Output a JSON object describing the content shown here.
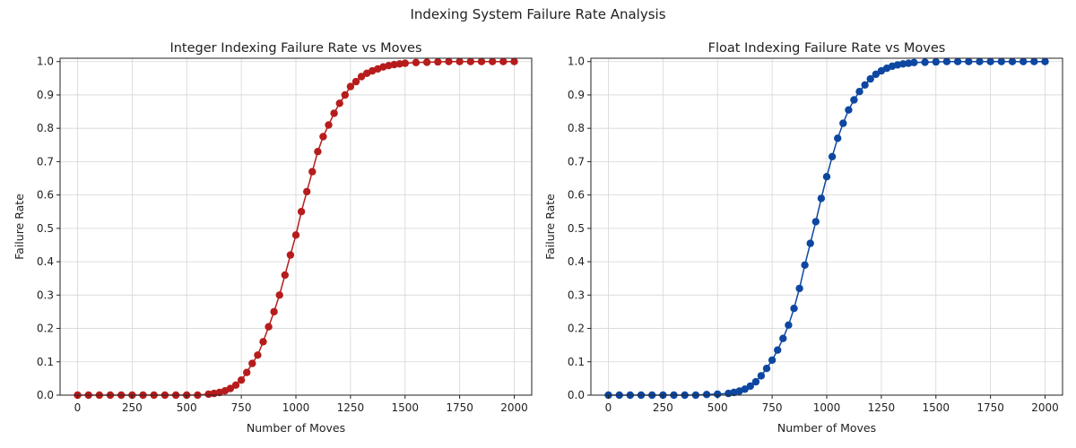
{
  "figure": {
    "suptitle": "Indexing System Failure Rate Analysis"
  },
  "chart_data": [
    {
      "type": "line",
      "title": "Integer Indexing Failure Rate vs Moves",
      "xlabel": "Number of Moves",
      "ylabel": "Failure Rate",
      "xlim": [
        -80,
        2080
      ],
      "ylim": [
        0,
        1.01
      ],
      "xticks": [
        0,
        250,
        500,
        750,
        1000,
        1250,
        1500,
        1750,
        2000
      ],
      "yticks": [
        0.0,
        0.1,
        0.2,
        0.3,
        0.4,
        0.5,
        0.6,
        0.7,
        0.8,
        0.9,
        1.0
      ],
      "grid": true,
      "color": "#b71c1c",
      "markers": "circle",
      "series": [
        {
          "x": [
            0,
            50,
            100,
            150,
            200,
            250,
            300,
            350,
            400,
            450,
            500,
            550,
            600,
            625,
            650,
            675,
            700,
            725,
            750,
            775,
            800,
            825,
            850,
            875,
            900,
            925,
            950,
            975,
            1000,
            1025,
            1050,
            1075,
            1100,
            1125,
            1150,
            1175,
            1200,
            1225,
            1250,
            1275,
            1300,
            1325,
            1350,
            1375,
            1400,
            1425,
            1450,
            1475,
            1500,
            1550,
            1600,
            1650,
            1700,
            1750,
            1800,
            1850,
            1900,
            1950,
            2000
          ],
          "y": [
            0.0,
            0.0,
            0.0,
            0.0,
            0.0,
            0.0,
            0.0,
            0.0,
            0.0,
            0.0,
            0.0,
            0.0,
            0.003,
            0.005,
            0.008,
            0.013,
            0.02,
            0.03,
            0.045,
            0.068,
            0.095,
            0.12,
            0.16,
            0.205,
            0.25,
            0.3,
            0.36,
            0.42,
            0.48,
            0.55,
            0.61,
            0.67,
            0.73,
            0.775,
            0.81,
            0.845,
            0.875,
            0.9,
            0.925,
            0.94,
            0.955,
            0.965,
            0.972,
            0.978,
            0.984,
            0.988,
            0.991,
            0.993,
            0.995,
            0.997,
            0.998,
            0.999,
            1.0,
            1.0,
            1.0,
            1.0,
            1.0,
            1.0,
            1.0
          ]
        }
      ]
    },
    {
      "type": "line",
      "title": "Float Indexing Failure Rate vs Moves",
      "xlabel": "Number of Moves",
      "ylabel": "Failure Rate",
      "xlim": [
        -80,
        2080
      ],
      "ylim": [
        0,
        1.01
      ],
      "xticks": [
        0,
        250,
        500,
        750,
        1000,
        1250,
        1500,
        1750,
        2000
      ],
      "yticks": [
        0.0,
        0.1,
        0.2,
        0.3,
        0.4,
        0.5,
        0.6,
        0.7,
        0.8,
        0.9,
        1.0
      ],
      "grid": true,
      "color": "#0d47a1",
      "markers": "circle",
      "series": [
        {
          "x": [
            0,
            50,
            100,
            150,
            200,
            250,
            300,
            350,
            400,
            450,
            500,
            550,
            575,
            600,
            625,
            650,
            675,
            700,
            725,
            750,
            775,
            800,
            825,
            850,
            875,
            900,
            925,
            950,
            975,
            1000,
            1025,
            1050,
            1075,
            1100,
            1125,
            1150,
            1175,
            1200,
            1225,
            1250,
            1275,
            1300,
            1325,
            1350,
            1375,
            1400,
            1450,
            1500,
            1550,
            1600,
            1650,
            1700,
            1750,
            1800,
            1850,
            1900,
            1950,
            2000
          ],
          "y": [
            0.0,
            0.0,
            0.0,
            0.0,
            0.0,
            0.0,
            0.0,
            0.0,
            0.0,
            0.002,
            0.003,
            0.005,
            0.008,
            0.012,
            0.018,
            0.027,
            0.04,
            0.058,
            0.08,
            0.105,
            0.135,
            0.17,
            0.21,
            0.26,
            0.32,
            0.39,
            0.455,
            0.52,
            0.59,
            0.655,
            0.715,
            0.77,
            0.815,
            0.855,
            0.885,
            0.91,
            0.93,
            0.948,
            0.962,
            0.972,
            0.98,
            0.986,
            0.99,
            0.993,
            0.995,
            0.997,
            0.998,
            0.999,
            1.0,
            1.0,
            1.0,
            1.0,
            1.0,
            1.0,
            1.0,
            1.0,
            1.0,
            1.0
          ]
        }
      ]
    }
  ]
}
